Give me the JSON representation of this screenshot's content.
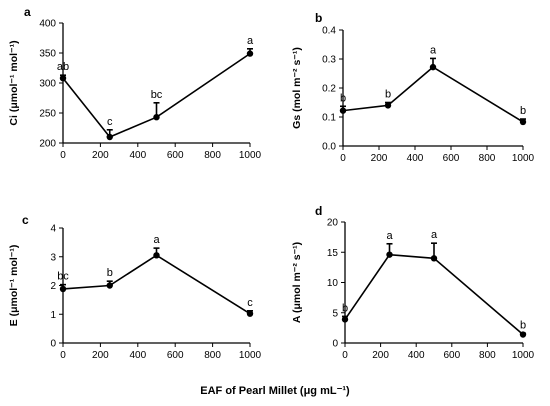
{
  "figure": {
    "shared_xlabel": "EAF of Pearl Millet (μg mL⁻¹)"
  },
  "chart_data": [
    {
      "type": "line",
      "panel_label": "a",
      "ylabel": "Ci (μmol⁻¹ mol⁻¹)",
      "x": [
        0,
        250,
        500,
        1000
      ],
      "y": [
        308,
        210,
        243,
        349
      ],
      "err": [
        5,
        12,
        24,
        8
      ],
      "sig": [
        "ab",
        "c",
        "bc",
        "a"
      ],
      "xlim": [
        0,
        1000
      ],
      "ylim": [
        200,
        400
      ],
      "xticks": [
        0,
        200,
        400,
        600,
        800,
        1000
      ],
      "yticks": [
        200,
        250,
        300,
        350,
        400
      ]
    },
    {
      "type": "line",
      "panel_label": "b",
      "ylabel": "Gs (mol m⁻² s⁻¹)",
      "x": [
        0,
        250,
        500,
        1000
      ],
      "y": [
        0.122,
        0.14,
        0.272,
        0.083
      ],
      "err": [
        0.015,
        0.01,
        0.03,
        0.01
      ],
      "sig": [
        "b",
        "b",
        "a",
        "b"
      ],
      "xlim": [
        0,
        1000
      ],
      "ylim": [
        0,
        0.4
      ],
      "xticks": [
        0,
        200,
        400,
        600,
        800,
        1000
      ],
      "yticks": [
        0.0,
        0.1,
        0.2,
        0.3,
        0.4
      ]
    },
    {
      "type": "line",
      "panel_label": "c",
      "ylabel": "E (μmol⁻¹ mol⁻¹)",
      "x": [
        0,
        250,
        500,
        1000
      ],
      "y": [
        1.88,
        2.0,
        3.05,
        1.02
      ],
      "err": [
        0.15,
        0.15,
        0.25,
        0.1
      ],
      "sig": [
        "bc",
        "b",
        "a",
        "c"
      ],
      "xlim": [
        0,
        1000
      ],
      "ylim": [
        0,
        4
      ],
      "xticks": [
        0,
        200,
        400,
        600,
        800,
        1000
      ],
      "yticks": [
        0,
        1,
        2,
        3,
        4
      ]
    },
    {
      "type": "line",
      "panel_label": "d",
      "ylabel": "A (μmol m⁻² s⁻¹)",
      "x": [
        0,
        250,
        500,
        1000
      ],
      "y": [
        3.9,
        14.6,
        14.0,
        1.4
      ],
      "err": [
        0.5,
        1.8,
        2.5,
        0.2
      ],
      "sig": [
        "b",
        "a",
        "a",
        "b"
      ],
      "xlim": [
        0,
        1000
      ],
      "ylim": [
        0,
        20
      ],
      "xticks": [
        0,
        200,
        400,
        600,
        800,
        1000
      ],
      "yticks": [
        0,
        5,
        10,
        15,
        20
      ]
    }
  ]
}
